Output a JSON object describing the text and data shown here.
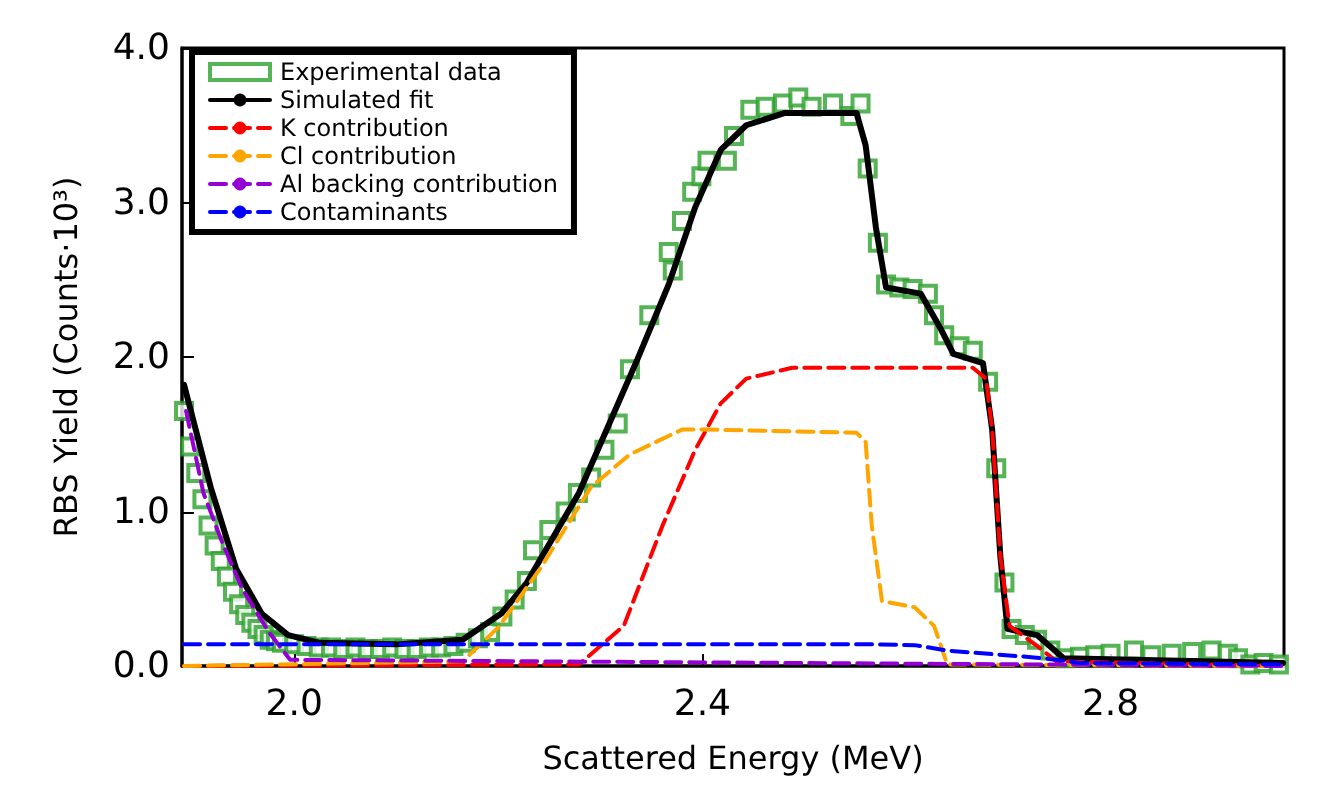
{
  "chart_data": {
    "type": "line",
    "xlabel": "Scattered Energy (MeV)",
    "ylabel": "RBS Yield (Counts·10³)",
    "xlim": [
      1.89,
      2.97
    ],
    "xticks": [
      {
        "value": 2,
        "label": "2.0"
      },
      {
        "value": 2.4,
        "label": "2.4"
      },
      {
        "value": 2.8,
        "label": "2.8"
      }
    ],
    "ylim": [
      0,
      4
    ],
    "yticks": [
      {
        "value": 0,
        "label": "0.0"
      },
      {
        "value": 1,
        "label": "1.0"
      },
      {
        "value": 2,
        "label": "2.0"
      },
      {
        "value": 3,
        "label": "3.0"
      },
      {
        "value": 4,
        "label": "4.0"
      }
    ],
    "grid": false,
    "legend": "top left",
    "series": [
      {
        "name": "Experimental data",
        "type": "scatter",
        "marker": "square",
        "color": "#2ca02c",
        "x": [
          1.892,
          1.898,
          1.904,
          1.91,
          1.916,
          1.922,
          1.928,
          1.934,
          1.94,
          1.946,
          1.952,
          1.958,
          1.964,
          1.97,
          1.976,
          1.982,
          1.988,
          2.0,
          2.012,
          2.024,
          2.036,
          2.048,
          2.06,
          2.072,
          2.084,
          2.096,
          2.108,
          2.12,
          2.132,
          2.144,
          2.156,
          2.168,
          2.18,
          2.192,
          2.204,
          2.216,
          2.228,
          2.234,
          2.25,
          2.266,
          2.278,
          2.291,
          2.304,
          2.317,
          2.329,
          2.348,
          2.367,
          2.371,
          2.38,
          2.39,
          2.399,
          2.405,
          2.424,
          2.431,
          2.447,
          2.462,
          2.479,
          2.494,
          2.507,
          2.528,
          2.545,
          2.555,
          2.562,
          2.572,
          2.58,
          2.593,
          2.606,
          2.621,
          2.627,
          2.637,
          2.652,
          2.665,
          2.68,
          2.688,
          2.696,
          2.703,
          2.716,
          2.728,
          2.741,
          2.756,
          2.77,
          2.785,
          2.8,
          2.823,
          2.84,
          2.86,
          2.88,
          2.899,
          2.915,
          2.925,
          2.937,
          2.95,
          2.965
        ],
        "values": [
          1.65,
          1.42,
          1.25,
          1.08,
          0.91,
          0.78,
          0.68,
          0.58,
          0.48,
          0.4,
          0.33,
          0.28,
          0.24,
          0.2,
          0.17,
          0.16,
          0.15,
          0.14,
          0.13,
          0.12,
          0.12,
          0.11,
          0.12,
          0.11,
          0.11,
          0.12,
          0.11,
          0.11,
          0.12,
          0.12,
          0.13,
          0.15,
          0.18,
          0.22,
          0.32,
          0.43,
          0.55,
          0.75,
          0.88,
          1.0,
          1.12,
          1.22,
          1.4,
          1.57,
          1.92,
          2.27,
          2.68,
          2.56,
          2.88,
          3.07,
          3.17,
          3.27,
          3.27,
          3.43,
          3.6,
          3.62,
          3.64,
          3.68,
          3.62,
          3.64,
          3.56,
          3.64,
          3.22,
          2.74,
          2.47,
          2.45,
          2.44,
          2.41,
          2.27,
          2.14,
          2.07,
          2.04,
          1.84,
          1.28,
          0.54,
          0.24,
          0.2,
          0.17,
          0.1,
          0.05,
          0.06,
          0.07,
          0.08,
          0.1,
          0.07,
          0.08,
          0.09,
          0.1,
          0.08,
          0.05,
          0.01,
          0.02,
          0.01
        ]
      },
      {
        "name": "Simulated fit",
        "marker": "none",
        "line_style": "solid",
        "color": "#000000",
        "x": [
          1.892,
          1.918,
          1.943,
          1.968,
          1.994,
          2.025,
          2.1,
          2.165,
          2.203,
          2.228,
          2.279,
          2.336,
          2.367,
          2.393,
          2.418,
          2.443,
          2.481,
          2.551,
          2.56,
          2.57,
          2.58,
          2.614,
          2.633,
          2.646,
          2.675,
          2.684,
          2.692,
          2.699,
          2.728,
          2.754,
          2.969
        ],
        "values": [
          1.82,
          1.16,
          0.63,
          0.34,
          0.2,
          0.15,
          0.14,
          0.17,
          0.34,
          0.54,
          1.12,
          1.98,
          2.47,
          2.97,
          3.34,
          3.5,
          3.58,
          3.58,
          3.37,
          2.84,
          2.45,
          2.41,
          2.19,
          2.02,
          1.96,
          1.53,
          0.71,
          0.24,
          0.2,
          0.05,
          0.02
        ]
      },
      {
        "name": "K contribution",
        "marker": "none",
        "line_style": "dashed",
        "color": "#ff0000",
        "x": [
          1.892,
          2.279,
          2.323,
          2.361,
          2.393,
          2.418,
          2.443,
          2.488,
          2.665,
          2.678,
          2.684,
          2.692,
          2.701,
          2.728,
          2.747,
          2.969
        ],
        "values": [
          0,
          0.01,
          0.26,
          0.91,
          1.4,
          1.7,
          1.86,
          1.93,
          1.93,
          1.86,
          1.53,
          0.71,
          0.26,
          0.13,
          0.03,
          0
        ]
      },
      {
        "name": "Cl contribution",
        "marker": "none",
        "line_style": "dashed",
        "color": "#ffa500",
        "x": [
          1.892,
          2.165,
          2.2,
          2.241,
          2.291,
          2.329,
          2.38,
          2.405,
          2.551,
          2.56,
          2.566,
          2.576,
          2.608,
          2.627,
          2.64,
          2.969
        ],
        "values": [
          0,
          0.03,
          0.25,
          0.63,
          1.16,
          1.37,
          1.53,
          1.53,
          1.51,
          1.45,
          0.91,
          0.42,
          0.38,
          0.26,
          0.01,
          0
        ]
      },
      {
        "name": "Al backing contribution",
        "marker": "none",
        "line_style": "dashed",
        "color": "#9400d3",
        "x": [
          1.894,
          1.911,
          1.93,
          1.949,
          1.975,
          1.996,
          2.969
        ],
        "values": [
          1.65,
          1.12,
          0.79,
          0.5,
          0.22,
          0.04,
          0
        ]
      },
      {
        "name": "Contaminants",
        "marker": "none",
        "line_style": "dashed",
        "color": "#0000ff",
        "x": [
          1.892,
          2.57,
          2.608,
          2.64,
          2.735,
          2.77,
          2.969
        ],
        "values": [
          0.14,
          0.14,
          0.135,
          0.1,
          0.05,
          0.02,
          0.01
        ]
      }
    ]
  }
}
